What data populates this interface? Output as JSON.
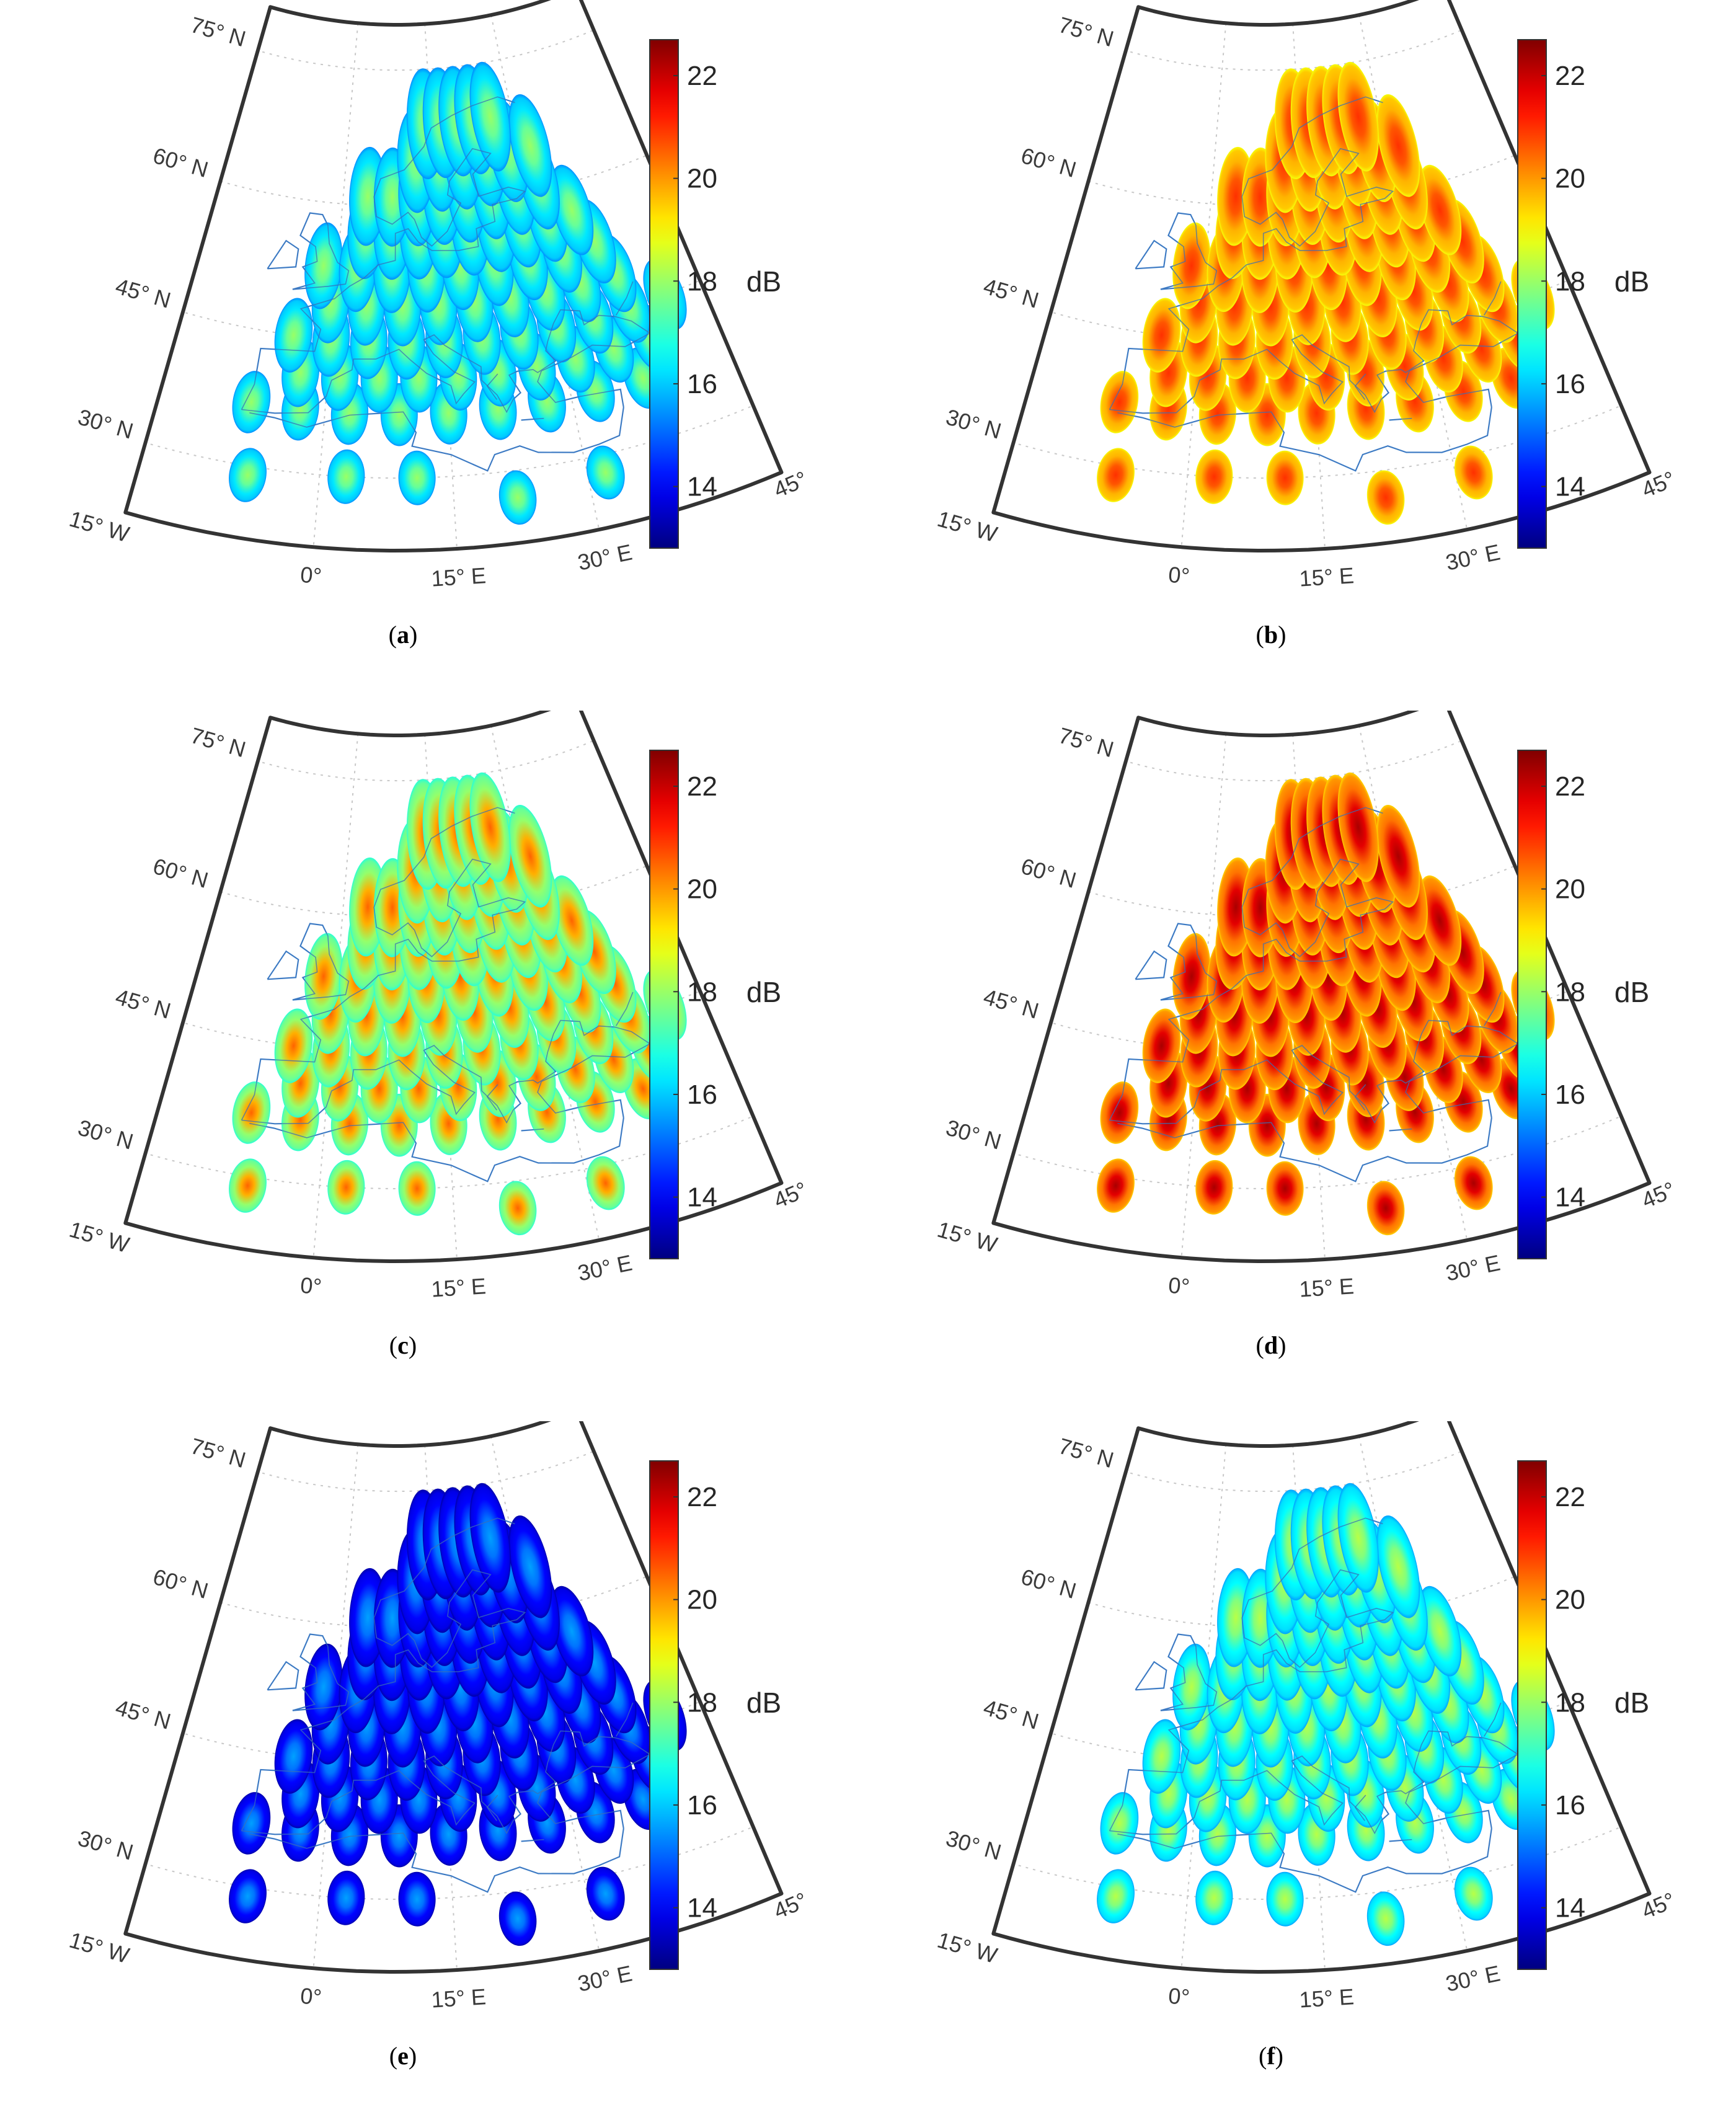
{
  "chart_data": [
    {
      "type": "heatmap",
      "panel": "a",
      "caption": "a",
      "colorbar": {
        "label": "dB",
        "range": [
          12.8,
          22.7
        ],
        "ticks": [
          "14",
          "16",
          "18",
          "20",
          "22"
        ]
      },
      "lat_labels": [
        "75° N",
        "60° N",
        "45° N",
        "30° N"
      ],
      "lon_labels": [
        "15° W",
        "0°",
        "15° E",
        "30° E",
        "45° E"
      ],
      "beam_center_db": 18.0,
      "beam_edge_db": 16.0
    },
    {
      "type": "heatmap",
      "panel": "b",
      "caption": "b",
      "colorbar": {
        "label": "dB",
        "range": [
          12.8,
          22.7
        ],
        "ticks": [
          "14",
          "16",
          "18",
          "20",
          "22"
        ]
      },
      "lat_labels": [
        "75° N",
        "60° N",
        "45° N",
        "30° N"
      ],
      "lon_labels": [
        "15° W",
        "0°",
        "15° E",
        "30° E",
        "45° E"
      ],
      "beam_center_db": 21.0,
      "beam_edge_db": 19.5
    },
    {
      "type": "heatmap",
      "panel": "c",
      "caption": "c",
      "colorbar": {
        "label": "dB",
        "range": [
          12.8,
          22.7
        ],
        "ticks": [
          "14",
          "16",
          "18",
          "20",
          "22"
        ]
      },
      "lat_labels": [
        "75° N",
        "60° N",
        "45° N",
        "30° N"
      ],
      "lon_labels": [
        "15° W",
        "0°",
        "15° E",
        "30° E",
        "45° E"
      ],
      "beam_center_db": 20.5,
      "beam_edge_db": 17.5
    },
    {
      "type": "heatmap",
      "panel": "d",
      "caption": "d",
      "colorbar": {
        "label": "dB",
        "range": [
          12.8,
          22.7
        ],
        "ticks": [
          "14",
          "16",
          "18",
          "20",
          "22"
        ]
      },
      "lat_labels": [
        "75° N",
        "60° N",
        "45° N",
        "30° N"
      ],
      "lon_labels": [
        "15° W",
        "0°",
        "15° E",
        "30° E",
        "45° E"
      ],
      "beam_center_db": 22.3,
      "beam_edge_db": 20.0
    },
    {
      "type": "heatmap",
      "panel": "e",
      "caption": "e",
      "colorbar": {
        "label": "dB",
        "range": [
          12.8,
          22.7
        ],
        "ticks": [
          "14",
          "16",
          "18",
          "20",
          "22"
        ]
      },
      "lat_labels": [
        "75° N",
        "60° N",
        "45° N",
        "30° N"
      ],
      "lon_labels": [
        "15° W",
        "0°",
        "15° E",
        "30° E",
        "45° E"
      ],
      "beam_center_db": 15.6,
      "beam_edge_db": 13.8
    },
    {
      "type": "heatmap",
      "panel": "f",
      "caption": "f",
      "colorbar": {
        "label": "dB",
        "range": [
          12.8,
          22.7
        ],
        "ticks": [
          "14",
          "16",
          "18",
          "20",
          "22"
        ]
      },
      "lat_labels": [
        "75° N",
        "60° N",
        "45° N",
        "30° N"
      ],
      "lon_labels": [
        "15° W",
        "0°",
        "15° E",
        "30° E",
        "45° E"
      ],
      "beam_center_db": 18.3,
      "beam_edge_db": 16.2
    }
  ]
}
